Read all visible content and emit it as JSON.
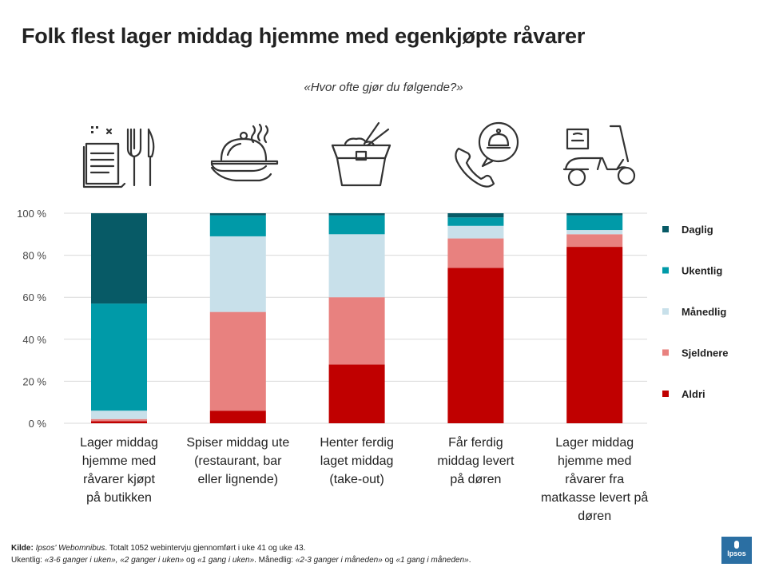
{
  "title": "Folk flest lager middag hjemme med egenkjøpte råvarer",
  "subtitle": "«Hvor ofte gjør du følgende?»",
  "icons": [
    "menu-cutlery-icon",
    "serving-cloche-icon",
    "takeout-box-icon",
    "phone-delivery-icon",
    "delivery-scooter-icon"
  ],
  "chart_data": {
    "type": "bar",
    "stacked": true,
    "ylim": [
      0,
      100
    ],
    "yticks": [
      "0 %",
      "20 %",
      "40 %",
      "60 %",
      "80 %",
      "100 %"
    ],
    "grid": true,
    "legend_position": "right",
    "categories": [
      "Lager middag hjemme med råvarer kjøpt på butikken",
      "Spiser middag ute (restaurant, bar eller lignende)",
      "Henter ferdig laget middag (take-out)",
      "Får ferdig middag levert på døren",
      "Lager middag hjemme med råvarer fra matkasse levert på døren"
    ],
    "category_lines": [
      [
        "Lager middag",
        "hjemme med",
        "råvarer kjøpt",
        "på butikken"
      ],
      [
        "Spiser middag ute",
        "(restaurant, bar",
        "eller lignende)"
      ],
      [
        "Henter ferdig",
        "laget middag",
        "(take-out)"
      ],
      [
        "Får ferdig",
        "middag levert",
        "på døren"
      ],
      [
        "Lager middag",
        "hjemme med",
        "råvarer fra",
        "matkasse levert på",
        "døren"
      ]
    ],
    "series": [
      {
        "name": "Aldri",
        "color": "#c00000",
        "values": [
          1,
          6,
          28,
          74,
          84
        ]
      },
      {
        "name": "Sjeldnere",
        "color": "#e8817f",
        "values": [
          1,
          47,
          32,
          14,
          6
        ]
      },
      {
        "name": "Månedlig",
        "color": "#c8e0ea",
        "values": [
          4,
          36,
          30,
          6,
          2
        ]
      },
      {
        "name": "Ukentlig",
        "color": "#009aa8",
        "values": [
          51,
          10,
          9,
          4,
          7
        ]
      },
      {
        "name": "Daglig",
        "color": "#075a66",
        "values": [
          43,
          1,
          1,
          2,
          1
        ]
      }
    ]
  },
  "source": {
    "label": "Kilde:",
    "source_name": "Ipsos' Webomnibus",
    "text": ". Totalt 1052 webintervju gjennomført i uke 41 og uke 43.",
    "line2_prefix": "Ukentlig: ",
    "weekly_def": "«3-6 ganger i uken», «2 ganger i uken»",
    "og1": " og ",
    "weekly_def2": "«1 gang i uken»",
    "monthly_prefix": ". Månedlig: ",
    "monthly_def": "«2-3 ganger i måneden»",
    "og2": " og ",
    "monthly_def2": "«1 gang i måneden»",
    "end": "."
  },
  "logo_text": "Ipsos"
}
